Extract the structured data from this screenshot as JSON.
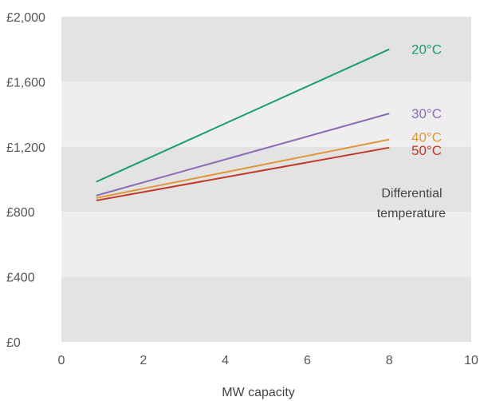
{
  "chart_data": {
    "type": "line",
    "title": "",
    "xlabel": "MW capacity",
    "ylabel": "",
    "xlim": [
      0,
      10
    ],
    "ylim": [
      0,
      2000
    ],
    "x_ticks": [
      0,
      2,
      4,
      6,
      8,
      10
    ],
    "x_tick_labels": [
      "0",
      "2",
      "4",
      "6",
      "8",
      "10"
    ],
    "y_ticks": [
      0,
      400,
      800,
      1200,
      1600,
      2000
    ],
    "y_tick_labels": [
      "£0",
      "£400",
      "£800",
      "£1,200",
      "£1,600",
      "£2,000"
    ],
    "background": "alternating horizontal bands",
    "series": [
      {
        "name": "20°C",
        "color": "#1a9e6e",
        "x": [
          0.85,
          8
        ],
        "y": [
          985,
          1800
        ]
      },
      {
        "name": "30°C",
        "color": "#8b6bb8",
        "x": [
          0.85,
          8
        ],
        "y": [
          900,
          1405
        ]
      },
      {
        "name": "40°C",
        "color": "#e0963a",
        "x": [
          0.85,
          8
        ],
        "y": [
          885,
          1245
        ]
      },
      {
        "name": "50°C",
        "color": "#c0392b",
        "x": [
          0.85,
          8
        ],
        "y": [
          870,
          1195
        ]
      }
    ],
    "annotation": [
      "Differential",
      "temperature"
    ]
  }
}
